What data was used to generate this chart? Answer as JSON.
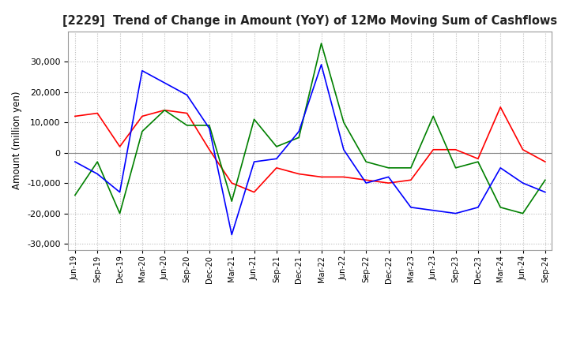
{
  "title": "[2229]  Trend of Change in Amount (YoY) of 12Mo Moving Sum of Cashflows",
  "ylabel": "Amount (million yen)",
  "ylim": [
    -32000,
    40000
  ],
  "yticks": [
    -30000,
    -20000,
    -10000,
    0,
    10000,
    20000,
    30000
  ],
  "background_color": "#ffffff",
  "grid_color": "#bbbbbb",
  "x_labels": [
    "Jun-19",
    "Sep-19",
    "Dec-19",
    "Mar-20",
    "Jun-20",
    "Sep-20",
    "Dec-20",
    "Mar-21",
    "Jun-21",
    "Sep-21",
    "Dec-21",
    "Mar-22",
    "Jun-22",
    "Sep-22",
    "Dec-22",
    "Mar-23",
    "Jun-23",
    "Sep-23",
    "Dec-23",
    "Mar-24",
    "Jun-24",
    "Sep-24"
  ],
  "operating": [
    12000,
    13000,
    2000,
    12000,
    14000,
    13000,
    1000,
    -10000,
    -13000,
    -5000,
    -7000,
    -8000,
    -8000,
    -9000,
    -10000,
    -9000,
    1000,
    1000,
    -2000,
    15000,
    1000,
    -3000
  ],
  "investing": [
    -14000,
    -3000,
    -20000,
    7000,
    14000,
    9000,
    9000,
    -16000,
    11000,
    2000,
    5000,
    36000,
    10000,
    -3000,
    -5000,
    -5000,
    12000,
    -5000,
    -3000,
    -18000,
    -20000,
    -9000
  ],
  "free": [
    -3000,
    -7000,
    -13000,
    27000,
    23000,
    19000,
    8000,
    -27000,
    -3000,
    -2000,
    7000,
    29000,
    1000,
    -10000,
    -8000,
    -18000,
    -19000,
    -20000,
    -18000,
    -5000,
    -10000,
    -13000
  ],
  "line_colors": {
    "operating": "#ff0000",
    "investing": "#008000",
    "free": "#0000ff"
  }
}
